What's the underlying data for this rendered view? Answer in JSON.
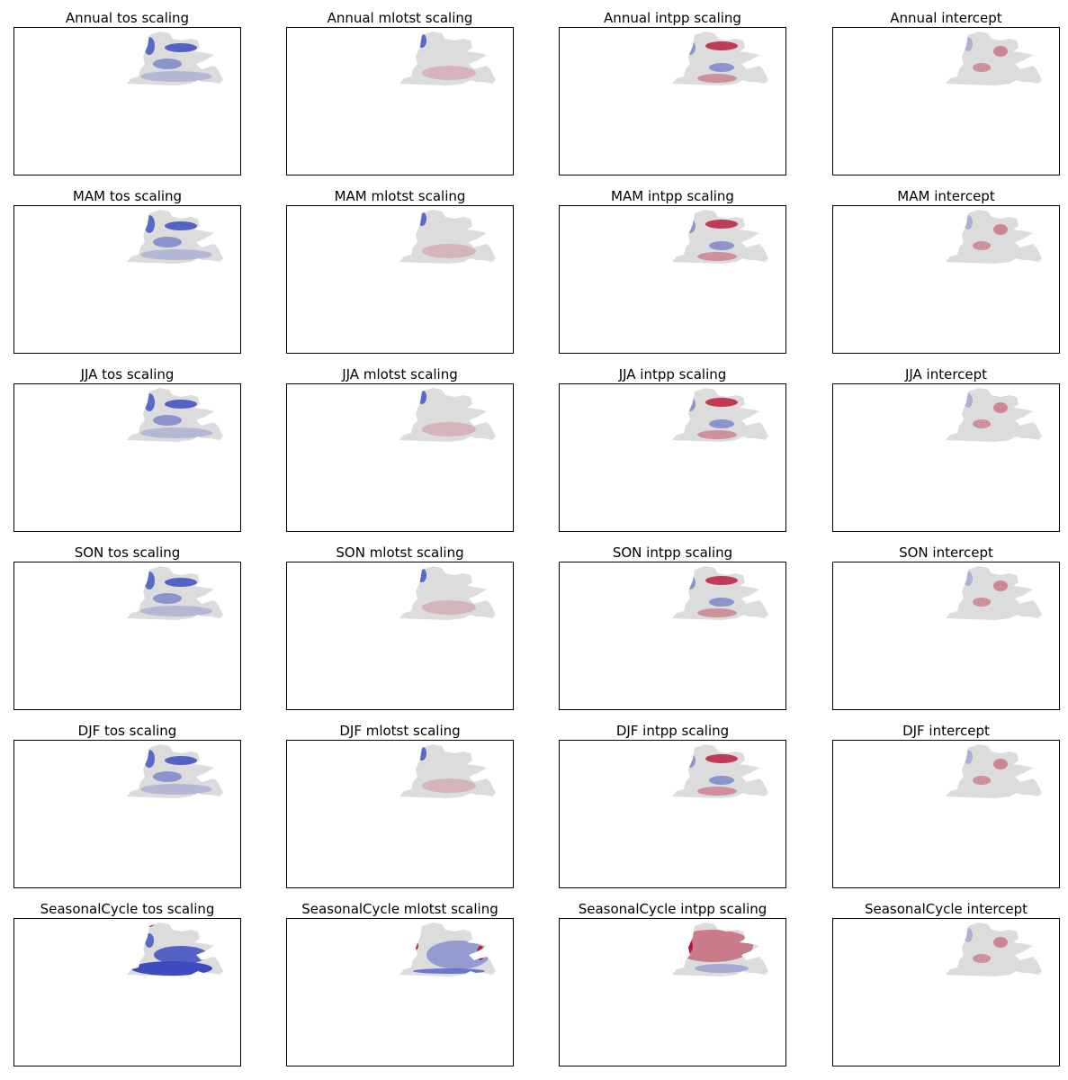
{
  "chart_data": {
    "type": "heatmap",
    "layout": "6x4 grid of map panels",
    "colormap": "coolwarm",
    "colors": {
      "blue_strong": "#3b4cc0",
      "neutral": "#dddcdc",
      "red_strong": "#b40426"
    },
    "axes": "none",
    "panels": [
      {
        "title": "Annual tos scaling"
      },
      {
        "title": "Annual mlotst scaling"
      },
      {
        "title": "Annual intpp scaling"
      },
      {
        "title": "Annual intercept"
      },
      {
        "title": "MAM tos scaling"
      },
      {
        "title": "MAM mlotst scaling"
      },
      {
        "title": "MAM intpp scaling"
      },
      {
        "title": "MAM intercept"
      },
      {
        "title": "JJA tos scaling"
      },
      {
        "title": "JJA mlotst scaling"
      },
      {
        "title": "JJA intpp scaling"
      },
      {
        "title": "JJA intercept"
      },
      {
        "title": "SON tos scaling"
      },
      {
        "title": "SON mlotst scaling"
      },
      {
        "title": "SON intpp scaling"
      },
      {
        "title": "SON intercept"
      },
      {
        "title": "DJF tos scaling"
      },
      {
        "title": "DJF mlotst scaling"
      },
      {
        "title": "DJF intpp scaling"
      },
      {
        "title": "DJF intercept"
      },
      {
        "title": "SeasonalCycle tos scaling"
      },
      {
        "title": "SeasonalCycle mlotst scaling"
      },
      {
        "title": "SeasonalCycle intpp scaling"
      },
      {
        "title": "SeasonalCycle intercept"
      }
    ]
  }
}
